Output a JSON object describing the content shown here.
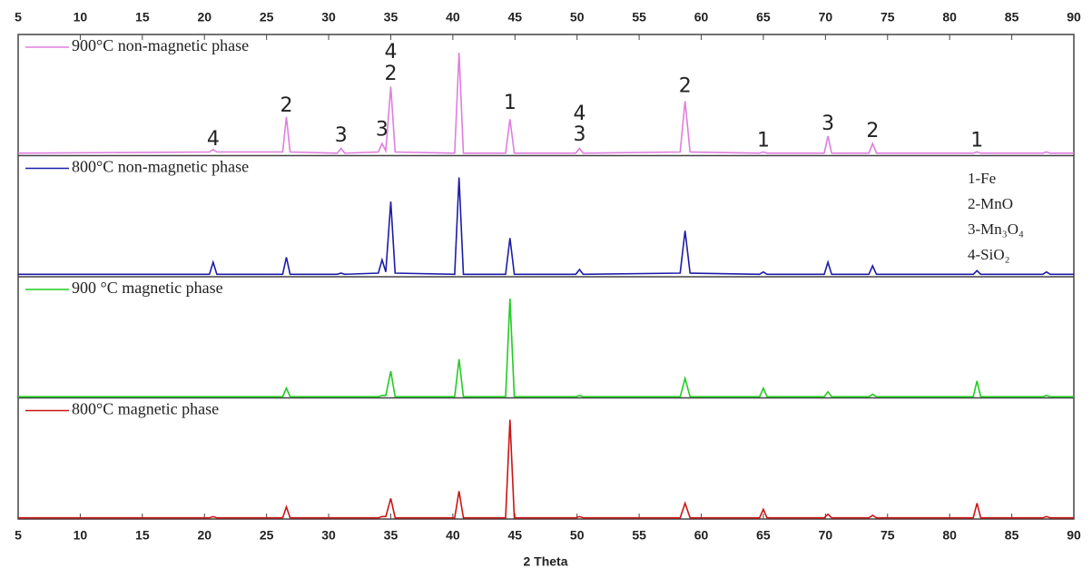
{
  "chart_data": {
    "type": "line",
    "xlabel": "2 Theta",
    "xlim": [
      5,
      90
    ],
    "xticks": [
      5,
      10,
      15,
      20,
      25,
      30,
      35,
      40,
      45,
      50,
      55,
      60,
      65,
      70,
      75,
      80,
      85,
      90
    ],
    "ylim": [
      0,
      100
    ],
    "x": [
      5,
      20.4,
      20.7,
      21,
      26.3,
      26.6,
      26.9,
      30.7,
      31,
      31.3,
      34,
      34.3,
      34.6,
      35,
      35.35,
      40.15,
      40.5,
      40.85,
      44.25,
      44.6,
      44.95,
      49.9,
      50.2,
      50.5,
      58.3,
      58.7,
      59.1,
      64.7,
      65,
      65.3,
      69.9,
      70.2,
      70.5,
      73.5,
      73.8,
      74.1,
      81.9,
      82.2,
      82.5,
      87.5,
      87.8,
      88.1,
      90
    ],
    "series": [
      {
        "name": "900°C non-magnetic phase",
        "color": "#e07ee0",
        "values": [
          2,
          3,
          5,
          3,
          3,
          32,
          3,
          2,
          6,
          2,
          3,
          10,
          4,
          57,
          3,
          2,
          85,
          2,
          2,
          30,
          2,
          2,
          6,
          2,
          3,
          45,
          3,
          2,
          3,
          2,
          2,
          16,
          2,
          2,
          10,
          2,
          2,
          3,
          2,
          2,
          3,
          2,
          2
        ]
      },
      {
        "name": "800°C non-magnetic phase",
        "color": "#1c1ca8",
        "values": [
          2,
          2,
          12,
          2,
          2,
          16,
          2,
          2,
          3,
          2,
          3,
          14,
          4,
          62,
          3,
          2,
          82,
          2,
          2,
          32,
          2,
          2,
          6,
          2,
          3,
          38,
          3,
          2,
          4,
          2,
          2,
          12,
          2,
          2,
          9,
          2,
          2,
          5,
          2,
          2,
          4,
          2,
          2
        ]
      },
      {
        "name": "900 °C magnetic phase",
        "color": "#22cc22",
        "values": [
          1,
          1,
          1,
          1,
          1,
          8,
          1,
          1,
          1,
          1,
          1,
          2,
          2,
          22,
          1,
          1,
          32,
          1,
          1,
          82,
          1,
          1,
          2,
          1,
          1,
          16,
          1,
          1,
          8,
          1,
          1,
          5,
          1,
          1,
          3,
          1,
          1,
          14,
          1,
          1,
          2,
          1,
          1
        ]
      },
      {
        "name": "800°C magnetic phase",
        "color": "#cc1414",
        "values": [
          1,
          1,
          2,
          1,
          1,
          10,
          1,
          1,
          1,
          1,
          1,
          2,
          2,
          17,
          1,
          1,
          23,
          1,
          1,
          82,
          1,
          1,
          2,
          1,
          1,
          13,
          1,
          1,
          8,
          1,
          1,
          4,
          1,
          1,
          3,
          1,
          1,
          13,
          1,
          1,
          2,
          1,
          1
        ]
      }
    ],
    "annotations": [
      {
        "text": "4",
        "x": 20.7,
        "y": 13
      },
      {
        "text": "2",
        "x": 26.6,
        "y": 41
      },
      {
        "text": "3",
        "x": 31,
        "y": 16
      },
      {
        "text": "3",
        "x": 34.3,
        "y": 21
      },
      {
        "text": "4",
        "x": 35,
        "y": 85
      },
      {
        "text": "2",
        "x": 35,
        "y": 67
      },
      {
        "text": "1",
        "x": 44.6,
        "y": 43
      },
      {
        "text": "4",
        "x": 50.2,
        "y": 34
      },
      {
        "text": "3",
        "x": 50.2,
        "y": 17
      },
      {
        "text": "2",
        "x": 58.7,
        "y": 57
      },
      {
        "text": "1",
        "x": 65,
        "y": 12
      },
      {
        "text": "3",
        "x": 70.2,
        "y": 26
      },
      {
        "text": "2",
        "x": 73.8,
        "y": 20
      },
      {
        "text": "1",
        "x": 82.2,
        "y": 12
      }
    ],
    "phase_key": [
      "1-Fe",
      "2-MnO",
      "3-Mn₃O₄",
      "4-SiO₂"
    ]
  }
}
